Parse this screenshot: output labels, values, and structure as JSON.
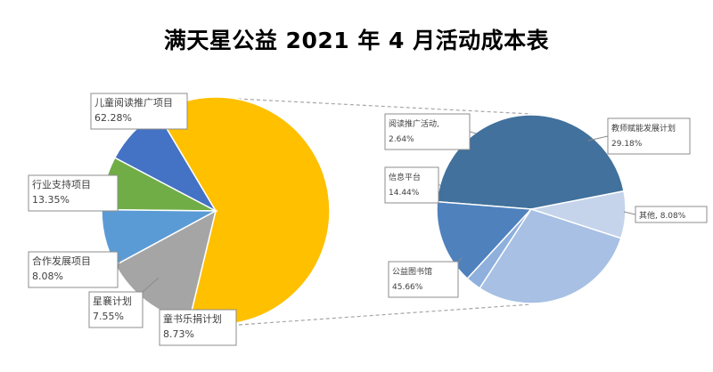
{
  "title": "满天星公益 2021 年 4 月活动成本表",
  "chart_data": [
    {
      "type": "pie",
      "slices": [
        {
          "label": "儿童阅读推广项目",
          "value": 62.28,
          "value_text": "62.28%",
          "color": "#FFC000"
        },
        {
          "label": "童书乐捐计划",
          "value": 8.73,
          "value_text": "8.73%",
          "color": "#4472C4"
        },
        {
          "label": "星襄计划",
          "value": 7.55,
          "value_text": "7.55%",
          "color": "#70AD47"
        },
        {
          "label": "合作发展项目",
          "value": 8.08,
          "value_text": "8.08%",
          "color": "#5B9BD5"
        },
        {
          "label": "行业支持项目",
          "value": 13.35,
          "value_text": "13.35%",
          "color": "#A5A5A5"
        }
      ]
    },
    {
      "type": "pie",
      "slices": [
        {
          "label": "其他",
          "value": 8.08,
          "value_text": "8.08%",
          "color": "#C5D4EB"
        },
        {
          "label": "公益图书馆",
          "value": 45.66,
          "value_text": "45.66%",
          "color": "#41719C"
        },
        {
          "label": "信息平台",
          "value": 14.44,
          "value_text": "14.44%",
          "color": "#4F81BD"
        },
        {
          "label": "阅读推广活动",
          "value": 2.64,
          "value_text": "2.64%",
          "color": "#8FB0DC"
        },
        {
          "label": "教师赋能发展计划",
          "value": 29.18,
          "value_text": "29.18%",
          "color": "#A7C0E3"
        }
      ]
    }
  ]
}
